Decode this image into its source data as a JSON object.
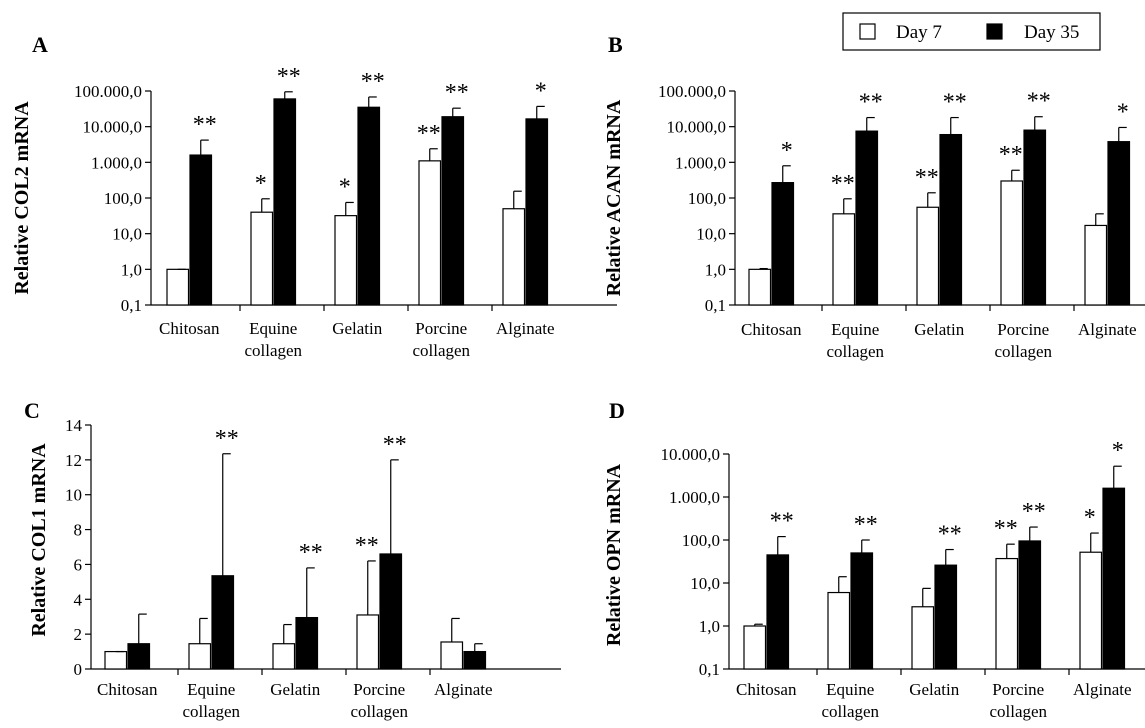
{
  "legend": [
    {
      "label": "Day 7",
      "color": "#ffffff"
    },
    {
      "label": "Day 35",
      "color": "#000000"
    }
  ],
  "chart_data": [
    {
      "panel": "A",
      "type": "bar",
      "ylabel": "Relative COL2 mRNA",
      "yscale": "log",
      "ylim": [
        0.1,
        100000
      ],
      "yticks": [
        0.1,
        1,
        10,
        100,
        1000,
        10000,
        100000
      ],
      "ytick_labels": [
        "0,1",
        "1,0",
        "10,0",
        "100,0",
        "1.000,0",
        "10.000,0",
        "100.000,0"
      ],
      "categories": [
        [
          "Chitosan"
        ],
        [
          "Equine",
          "collagen"
        ],
        [
          "Gelatin"
        ],
        [
          "Porcine",
          "collagen"
        ],
        [
          "Alginate"
        ]
      ],
      "series": [
        {
          "name": "Day 7",
          "values": [
            1,
            40,
            32,
            1100,
            50
          ],
          "errors": [
            1,
            95,
            75,
            2400,
            155
          ],
          "stars": [
            "",
            "*",
            "*",
            "**",
            ""
          ]
        },
        {
          "name": "Day 35",
          "values": [
            1600,
            60000,
            35000,
            19000,
            16500
          ],
          "errors": [
            4200,
            95000,
            68000,
            33000,
            37000
          ],
          "stars": [
            "**",
            "**",
            "**",
            "**",
            "*"
          ]
        }
      ]
    },
    {
      "panel": "B",
      "type": "bar",
      "ylabel": "Relative ACAN mRNA",
      "yscale": "log",
      "ylim": [
        0.1,
        100000
      ],
      "yticks": [
        0.1,
        1,
        10,
        100,
        1000,
        10000,
        100000
      ],
      "ytick_labels": [
        "0,1",
        "1,0",
        "10,0",
        "100,0",
        "1.000,0",
        "10.000,0",
        "100.000,0"
      ],
      "categories": [
        [
          "Chitosan"
        ],
        [
          "Equine",
          "collagen"
        ],
        [
          "Gelatin"
        ],
        [
          "Porcine",
          "collagen"
        ],
        [
          "Alginate"
        ]
      ],
      "series": [
        {
          "name": "Day 7",
          "values": [
            1,
            36,
            55,
            300,
            17
          ],
          "errors": [
            1.05,
            95,
            140,
            600,
            36
          ],
          "stars": [
            "",
            "**",
            "**",
            "**",
            ""
          ]
        },
        {
          "name": "Day 35",
          "values": [
            270,
            7500,
            6000,
            8000,
            3800
          ],
          "errors": [
            800,
            18000,
            18000,
            19000,
            9500
          ],
          "stars": [
            "*",
            "**",
            "**",
            "**",
            "*"
          ]
        }
      ]
    },
    {
      "panel": "C",
      "type": "bar",
      "ylabel": "Relative COL1 mRNA",
      "yscale": "linear",
      "ylim": [
        0,
        14
      ],
      "yticks": [
        0,
        2,
        4,
        6,
        8,
        10,
        12,
        14
      ],
      "ytick_labels": [
        "0",
        "2",
        "4",
        "6",
        "8",
        "10",
        "12",
        "14"
      ],
      "categories": [
        [
          "Chitosan"
        ],
        [
          "Equine",
          "collagen"
        ],
        [
          "Gelatin"
        ],
        [
          "Porcine",
          "collagen"
        ],
        [
          "Alginate"
        ]
      ],
      "series": [
        {
          "name": "Day 7",
          "values": [
            1,
            1.45,
            1.45,
            3.1,
            1.55
          ],
          "errors": [
            1,
            2.9,
            2.55,
            6.2,
            2.9
          ],
          "stars": [
            "",
            "",
            "",
            "**",
            ""
          ]
        },
        {
          "name": "Day 35",
          "values": [
            1.45,
            5.35,
            2.95,
            6.6,
            1.0
          ],
          "errors": [
            3.15,
            12.35,
            5.8,
            12.0,
            1.45
          ],
          "stars": [
            "",
            "**",
            "**",
            "**",
            ""
          ]
        }
      ]
    },
    {
      "panel": "D",
      "type": "bar",
      "ylabel": "Relative OPN mRNA",
      "yscale": "log",
      "ylim": [
        0.1,
        10000
      ],
      "yticks": [
        0.1,
        1,
        10,
        100,
        1000,
        10000
      ],
      "ytick_labels": [
        "0,1",
        "1,0",
        "10,0",
        "100,0",
        "1.000,0",
        "10.000,0"
      ],
      "categories": [
        [
          "Chitosan"
        ],
        [
          "Equine",
          "collagen"
        ],
        [
          "Gelatin"
        ],
        [
          "Porcine",
          "collagen"
        ],
        [
          "Alginate"
        ]
      ],
      "series": [
        {
          "name": "Day 7",
          "values": [
            1,
            6,
            2.8,
            37,
            52
          ],
          "errors": [
            1.1,
            14,
            7.5,
            80,
            145
          ],
          "stars": [
            "",
            "",
            "",
            "**",
            "*"
          ]
        },
        {
          "name": "Day 35",
          "values": [
            45,
            50,
            26,
            95,
            1600
          ],
          "errors": [
            120,
            100,
            60,
            200,
            5200
          ],
          "stars": [
            "**",
            "**",
            "**",
            "**",
            "*"
          ]
        }
      ]
    }
  ]
}
